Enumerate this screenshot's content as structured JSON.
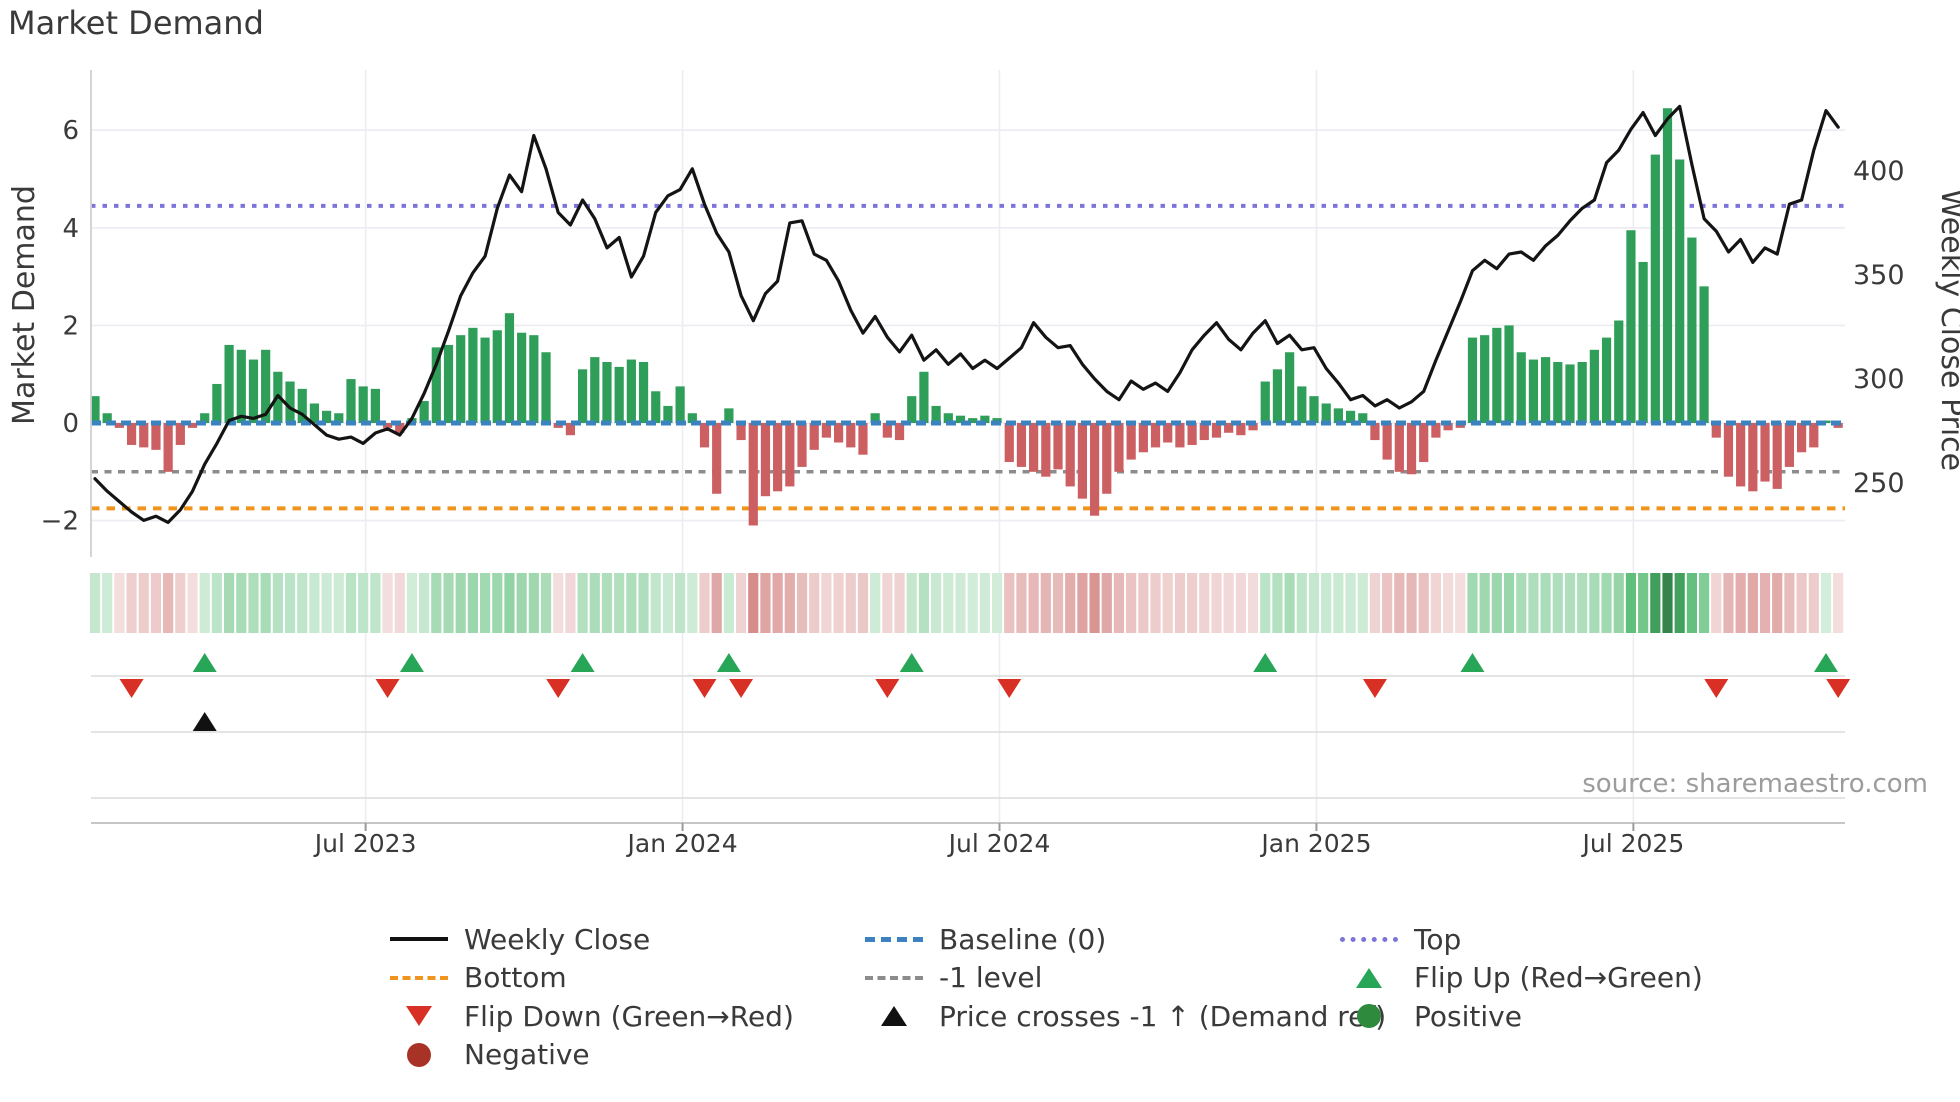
{
  "title": "Market Demand",
  "source": "source: sharemaestro.com",
  "axes": {
    "left_label": "Market Demand",
    "right_label": "Weekly Close Price",
    "left_ticks": [
      6,
      4,
      2,
      0,
      -2
    ],
    "right_ticks": [
      400,
      350,
      300,
      250
    ],
    "x_tick_labels": [
      "Jul 2023",
      "Jan 2024",
      "Jul 2024",
      "Jan 2025",
      "Jul 2025"
    ]
  },
  "colors": {
    "bar_positive": "#2f9e58",
    "bar_negative": "#cb5f62",
    "price_line": "#141414",
    "baseline": "#3b82c0",
    "top_line": "#7d74d9",
    "bottom_line": "#f0941e",
    "minus_one_line": "#8c8c8c",
    "flip_up": "#27a658",
    "flip_down": "#d93025",
    "positive_dot": "#2e8b3d",
    "negative_dot": "#a93226",
    "price_cross": "#111111",
    "grid": "#ececf2"
  },
  "chart_data": {
    "type": "bar+line",
    "title": "Market Demand",
    "ylabel_left": "Market Demand",
    "ylabel_right": "Weekly Close Price",
    "ylim_left": [
      -2.75,
      7.2
    ],
    "reference_lines": {
      "top": 4.45,
      "baseline": 0,
      "minus_one": -1,
      "bottom": -1.75
    },
    "x_tick_weeks": [
      22.2,
      48.2,
      74.2,
      100.2,
      126.2
    ],
    "x_tick_labels": [
      "Jul 2023",
      "Jan 2024",
      "Jul 2024",
      "Jan 2025",
      "Jul 2025"
    ],
    "series": [
      {
        "name": "Market Demand (weekly bars)",
        "axis": "left",
        "values": [
          0.55,
          0.2,
          -0.1,
          -0.45,
          -0.5,
          -0.55,
          -1.0,
          -0.45,
          -0.1,
          0.2,
          0.8,
          1.6,
          1.5,
          1.3,
          1.5,
          1.05,
          0.85,
          0.7,
          0.4,
          0.25,
          0.2,
          0.9,
          0.75,
          0.7,
          -0.1,
          -0.2,
          0.1,
          0.45,
          1.55,
          1.6,
          1.8,
          1.95,
          1.75,
          1.9,
          2.25,
          1.85,
          1.8,
          1.45,
          -0.1,
          -0.25,
          1.1,
          1.35,
          1.25,
          1.15,
          1.3,
          1.25,
          0.65,
          0.35,
          0.75,
          0.2,
          -0.5,
          -1.45,
          0.3,
          -0.35,
          -2.1,
          -1.5,
          -1.4,
          -1.3,
          -0.9,
          -0.55,
          -0.3,
          -0.4,
          -0.5,
          -0.65,
          0.2,
          -0.3,
          -0.35,
          0.55,
          1.05,
          0.35,
          0.2,
          0.15,
          0.1,
          0.15,
          0.1,
          -0.8,
          -0.9,
          -1.0,
          -1.1,
          -0.95,
          -1.3,
          -1.55,
          -1.9,
          -1.45,
          -1.0,
          -0.75,
          -0.6,
          -0.5,
          -0.4,
          -0.5,
          -0.45,
          -0.35,
          -0.3,
          -0.2,
          -0.25,
          -0.15,
          0.85,
          1.1,
          1.45,
          0.75,
          0.55,
          0.4,
          0.3,
          0.25,
          0.2,
          -0.35,
          -0.75,
          -1.0,
          -1.05,
          -0.8,
          -0.3,
          -0.15,
          -0.1,
          1.75,
          1.8,
          1.95,
          2.0,
          1.45,
          1.3,
          1.35,
          1.25,
          1.2,
          1.25,
          1.5,
          1.75,
          2.1,
          3.95,
          3.3,
          5.5,
          6.45,
          5.4,
          3.8,
          2.8,
          -0.3,
          -1.1,
          -1.3,
          -1.4,
          -1.2,
          -1.35,
          -0.9,
          -0.6,
          -0.5,
          0.05,
          -0.1
        ]
      },
      {
        "name": "Weekly Close",
        "axis": "right",
        "values": [
          252,
          246,
          241,
          236,
          232,
          234,
          231,
          237,
          246,
          259,
          269,
          280,
          282,
          281,
          283,
          292,
          286,
          283,
          278,
          273,
          271,
          272,
          269,
          274,
          276,
          273,
          281,
          293,
          307,
          323,
          340,
          351,
          359,
          382,
          398,
          390,
          417,
          401,
          380,
          374,
          386,
          377,
          363,
          368,
          349,
          359,
          380,
          388,
          391,
          401,
          384,
          370,
          361,
          340,
          328,
          341,
          347,
          375,
          376,
          360,
          357,
          347,
          333,
          322,
          330,
          320,
          313,
          321,
          309,
          314,
          307,
          312,
          305,
          309,
          305,
          310,
          315,
          327,
          320,
          315,
          316,
          307,
          300,
          294,
          290,
          299,
          295,
          298,
          294,
          303,
          314,
          321,
          327,
          319,
          314,
          322,
          328,
          317,
          321,
          314,
          315,
          305,
          298,
          290,
          292,
          287,
          290,
          286,
          289,
          294,
          309,
          323,
          337,
          352,
          357,
          353,
          360,
          361,
          357,
          364,
          369,
          376,
          382,
          386,
          404,
          410,
          420,
          428,
          417,
          425,
          431,
          403,
          377,
          371,
          361,
          367,
          356,
          363,
          360,
          384,
          386,
          410,
          429,
          421
        ]
      }
    ],
    "heatmap": "same values as Market Demand bars, red-to-green intensity strip",
    "markers": {
      "flip_up_weeks": [
        9,
        26,
        40,
        52,
        67,
        96,
        113,
        142
      ],
      "flip_down_weeks": [
        3,
        24,
        38,
        50,
        53,
        65,
        75,
        105,
        133,
        143
      ],
      "price_cross_weeks": [
        9
      ]
    }
  },
  "legend": {
    "columns": [
      {
        "items": [
          {
            "label": "Weekly Close",
            "swatch": "line-black"
          },
          {
            "label": "Bottom",
            "swatch": "dash-orange"
          },
          {
            "label": "Flip Down (Green→Red)",
            "swatch": "tri-down-red"
          },
          {
            "label": "Negative",
            "swatch": "circle-darkred"
          }
        ]
      },
      {
        "items": [
          {
            "label": "Baseline (0)",
            "swatch": "dash-blue"
          },
          {
            "label": "-1 level",
            "swatch": "dash-gray"
          },
          {
            "label": "Price crosses -1 ↑ (Demand ref)",
            "swatch": "tri-up-black"
          }
        ]
      },
      {
        "items": [
          {
            "label": "Top",
            "swatch": "dot-purple"
          },
          {
            "label": "Flip Up (Red→Green)",
            "swatch": "tri-up-green"
          },
          {
            "label": "Positive",
            "swatch": "circle-green"
          }
        ]
      }
    ]
  }
}
